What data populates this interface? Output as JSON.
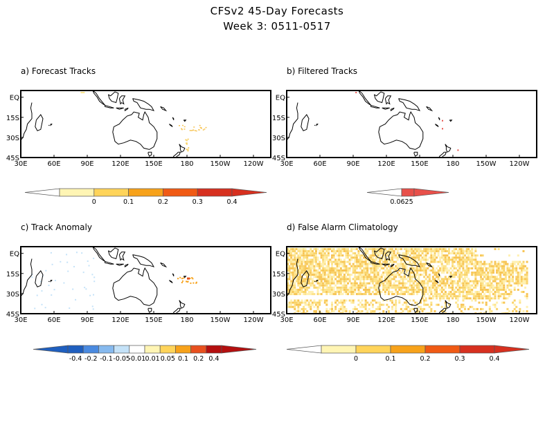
{
  "title": "CFSv2 45-Day Forecasts",
  "subtitle": "Week 3: 0511-0517",
  "panels": {
    "a": {
      "label": "a) Forecast Tracks"
    },
    "b": {
      "label": "b) Filtered Tracks"
    },
    "c": {
      "label": "c) Track Anomaly"
    },
    "d": {
      "label": "d) False Alarm Climatology"
    }
  },
  "axes": {
    "lon_ticks": [
      "30E",
      "60E",
      "90E",
      "120E",
      "150E",
      "180",
      "150W",
      "120W"
    ],
    "lat_ticks": [
      "EQ",
      "15S",
      "30S",
      "45S"
    ]
  },
  "colorbars": {
    "a": {
      "labels": [
        "0",
        "0.1",
        "0.2",
        "0.3",
        "0.4"
      ],
      "colors": [
        "#fff5b4",
        "#ffd45a",
        "#f7a21a",
        "#f05a14",
        "#d7301f"
      ]
    },
    "b": {
      "labels": [
        "0.0625"
      ],
      "colors": [
        "#e8504a"
      ]
    },
    "c": {
      "labels": [
        "-0.4",
        "-0.2",
        "-0.1",
        "-0.05",
        "-0.01",
        "0.01",
        "0.05",
        "0.1",
        "0.2",
        "0.4"
      ],
      "colors": [
        "#1f5fbf",
        "#4a8ae0",
        "#86b9ee",
        "#c4e2f8",
        "#ffffff",
        "#fff5b4",
        "#ffd45a",
        "#f7a21a",
        "#e8501e",
        "#b40f0f"
      ]
    },
    "d": {
      "labels": [
        "0",
        "0.1",
        "0.2",
        "0.3",
        "0.4"
      ],
      "colors": [
        "#fff5b4",
        "#ffd45a",
        "#f7a21a",
        "#f05a14",
        "#d7301f"
      ]
    }
  }
}
